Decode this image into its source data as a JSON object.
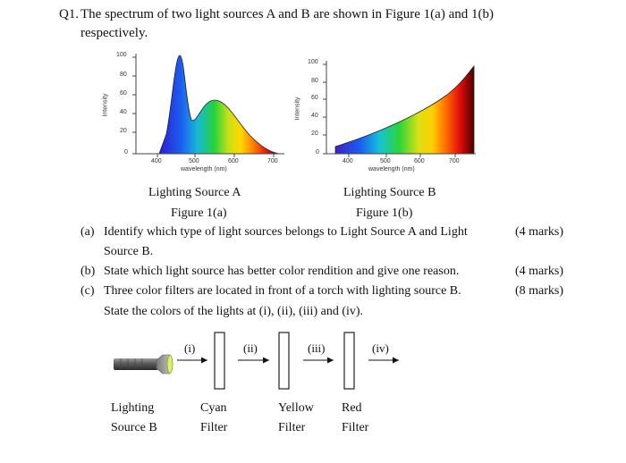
{
  "question": {
    "number": "Q1.",
    "intro_line1": "The spectrum of two light sources A and B are shown in Figure 1(a) and 1(b)",
    "intro_line2": "respectively."
  },
  "figures": [
    {
      "ylabel": "Intensity",
      "xlabel": "wavelength (nm)",
      "yticks": [
        "100",
        "80",
        "60",
        "40",
        "20",
        "0"
      ],
      "xticks": [
        "400",
        "500",
        "600",
        "700"
      ],
      "caption": "Lighting Source A",
      "figure_label": "Figure 1(a)"
    },
    {
      "ylabel": "Intensity",
      "xlabel": "wavelength (nm)",
      "yticks": [
        "100",
        "80",
        "60",
        "40",
        "20",
        "0"
      ],
      "xticks": [
        "400",
        "500",
        "600",
        "700"
      ],
      "caption": "Lighting Source B",
      "figure_label": "Figure 1(b)"
    }
  ],
  "parts": [
    {
      "label": "(a)",
      "text1": "Identify which type of light sources belongs to Light Source A and Light",
      "text2": "Source B.",
      "marks": "(4 marks)"
    },
    {
      "label": "(b)",
      "text1": "State which light source has better color rendition and give one reason.",
      "marks": "(4 marks)"
    },
    {
      "label": "(c)",
      "text1": "Three color filters are located in front of a torch with lighting source B.",
      "text2": "State the colors of the lights at (i), (ii), (iii) and (iv).",
      "marks": "(8 marks)"
    }
  ],
  "diagram": {
    "arrow_labels": [
      "(i)",
      "(ii)",
      "(iii)",
      "(iv)"
    ],
    "source_label1": "Lighting",
    "source_label2": "Source B",
    "filters": [
      {
        "line1": "Cyan",
        "line2": "Filter"
      },
      {
        "line1": "Yellow",
        "line2": "Filter"
      },
      {
        "line1": "Red",
        "line2": "Filter"
      }
    ]
  }
}
